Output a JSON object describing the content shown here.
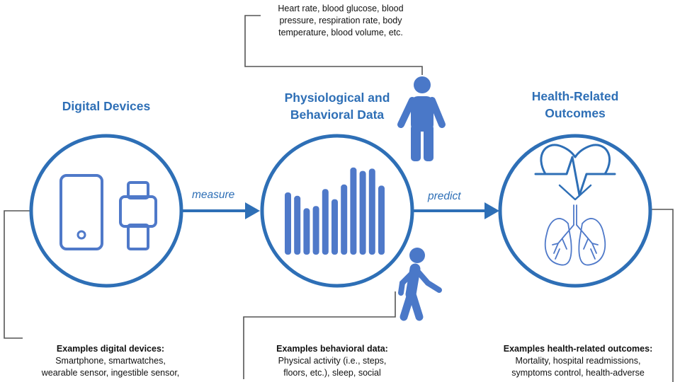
{
  "colors": {
    "accent": "#2e6fb6",
    "accent_light": "#4f79c9",
    "person": "#4a78c8",
    "bracket": "#555555",
    "text": "#111111"
  },
  "nodes": {
    "devices": {
      "title_lines": [
        "Digital Devices"
      ]
    },
    "data": {
      "title_lines": [
        "Physiological and",
        "Behavioral Data"
      ]
    },
    "outcomes": {
      "title_lines": [
        "Health-Related",
        "Outcomes"
      ]
    }
  },
  "edges": {
    "measure": "measure",
    "predict": "predict"
  },
  "examples": {
    "physiological": {
      "lines": [
        "Heart rate, blood glucose, blood",
        "pressure, respiration rate, body",
        "temperature, blood volume, etc."
      ]
    },
    "devices": {
      "title": "Examples digital devices:",
      "lines": [
        "Smartphone, smartwatches,",
        "wearable sensor, ingestible sensor,"
      ]
    },
    "behavioral": {
      "title": "Examples behavioral data:",
      "lines": [
        "Physical activity (i.e., steps,",
        "floors, etc.), sleep, social"
      ]
    },
    "outcomes": {
      "title": "Examples health-related outcomes:",
      "lines": [
        "Mortality, hospital readmissions,",
        "symptoms control, health-adverse"
      ]
    }
  },
  "icons": {
    "devices": [
      "smartphone-icon",
      "smartwatch-icon"
    ],
    "data": [
      "bar-signal-icon",
      "standing-person-icon",
      "walking-person-icon"
    ],
    "outcomes": [
      "heart-pulse-icon",
      "lungs-icon"
    ]
  },
  "bar_signal": [
    0.55,
    0.52,
    0.41,
    0.43,
    0.58,
    0.49,
    0.62,
    0.77,
    0.74,
    0.76,
    0.61
  ]
}
